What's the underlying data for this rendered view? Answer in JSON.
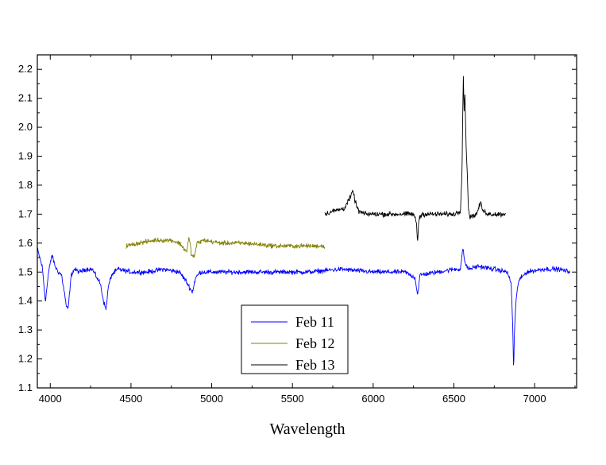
{
  "chart_data": {
    "type": "line",
    "xlabel": "Wavelength",
    "ylabel": "",
    "xlim": [
      3920,
      7260
    ],
    "ylim": [
      1.1,
      2.25
    ],
    "x_ticks": [
      4000,
      4500,
      5000,
      5500,
      6000,
      6500,
      7000
    ],
    "y_ticks": [
      1.1,
      1.2,
      1.3,
      1.4,
      1.5,
      1.6,
      1.7,
      1.8,
      1.9,
      2.0,
      2.1,
      2.2
    ],
    "x_tick_labels": [
      "4000",
      "4500",
      "5000",
      "5500",
      "6000",
      "6500",
      "7000"
    ],
    "y_tick_labels": [
      "1.1",
      "1.2",
      "1.3",
      "1.4",
      "1.5",
      "1.6",
      "1.7",
      "1.8",
      "1.9",
      "2.0",
      "2.1",
      "2.2"
    ],
    "grid": false,
    "legend_position": "bottom-center",
    "series": [
      {
        "name": "Feb 11",
        "color": "#0000ff",
        "noise": 0.012,
        "x": [
          3920,
          3950,
          3970,
          3990,
          4010,
          4030,
          4050,
          4070,
          4090,
          4100,
          4110,
          4130,
          4150,
          4180,
          4220,
          4260,
          4290,
          4310,
          4330,
          4345,
          4360,
          4380,
          4420,
          4500,
          4600,
          4700,
          4800,
          4840,
          4860,
          4880,
          4900,
          4930,
          5000,
          5200,
          5400,
          5600,
          5800,
          6000,
          6200,
          6260,
          6275,
          6290,
          6400,
          6500,
          6540,
          6555,
          6570,
          6590,
          6650,
          6750,
          6830,
          6855,
          6865,
          6870,
          6875,
          6885,
          6900,
          6950,
          7050,
          7150,
          7220
        ],
        "values": [
          1.58,
          1.52,
          1.4,
          1.5,
          1.56,
          1.52,
          1.5,
          1.49,
          1.42,
          1.38,
          1.37,
          1.49,
          1.51,
          1.5,
          1.51,
          1.51,
          1.48,
          1.46,
          1.4,
          1.37,
          1.45,
          1.49,
          1.51,
          1.5,
          1.5,
          1.51,
          1.5,
          1.47,
          1.45,
          1.43,
          1.48,
          1.5,
          1.5,
          1.5,
          1.5,
          1.5,
          1.51,
          1.5,
          1.5,
          1.48,
          1.42,
          1.49,
          1.5,
          1.51,
          1.51,
          1.58,
          1.53,
          1.51,
          1.52,
          1.51,
          1.5,
          1.46,
          1.3,
          1.15,
          1.3,
          1.4,
          1.47,
          1.5,
          1.51,
          1.51,
          1.5
        ]
      },
      {
        "name": "Feb 12",
        "color": "#808000",
        "noise": 0.012,
        "x": [
          4470,
          4550,
          4650,
          4750,
          4800,
          4830,
          4845,
          4860,
          4875,
          4890,
          4910,
          4950,
          5050,
          5200,
          5400,
          5550,
          5700
        ],
        "values": [
          1.59,
          1.6,
          1.61,
          1.61,
          1.6,
          1.58,
          1.57,
          1.62,
          1.56,
          1.55,
          1.6,
          1.61,
          1.6,
          1.6,
          1.59,
          1.59,
          1.59
        ]
      },
      {
        "name": "Feb 13",
        "color": "#000000",
        "noise": 0.013,
        "x": [
          5700,
          5750,
          5820,
          5860,
          5875,
          5890,
          5910,
          5950,
          6050,
          6150,
          6250,
          6268,
          6275,
          6282,
          6300,
          6400,
          6500,
          6540,
          6550,
          6558,
          6563,
          6568,
          6575,
          6590,
          6600,
          6640,
          6665,
          6680,
          6720,
          6820
        ],
        "values": [
          1.7,
          1.71,
          1.72,
          1.76,
          1.78,
          1.74,
          1.71,
          1.7,
          1.7,
          1.7,
          1.7,
          1.67,
          1.6,
          1.68,
          1.7,
          1.7,
          1.7,
          1.71,
          1.85,
          2.19,
          2.05,
          2.12,
          1.95,
          1.72,
          1.69,
          1.7,
          1.74,
          1.71,
          1.7,
          1.7
        ]
      }
    ]
  }
}
